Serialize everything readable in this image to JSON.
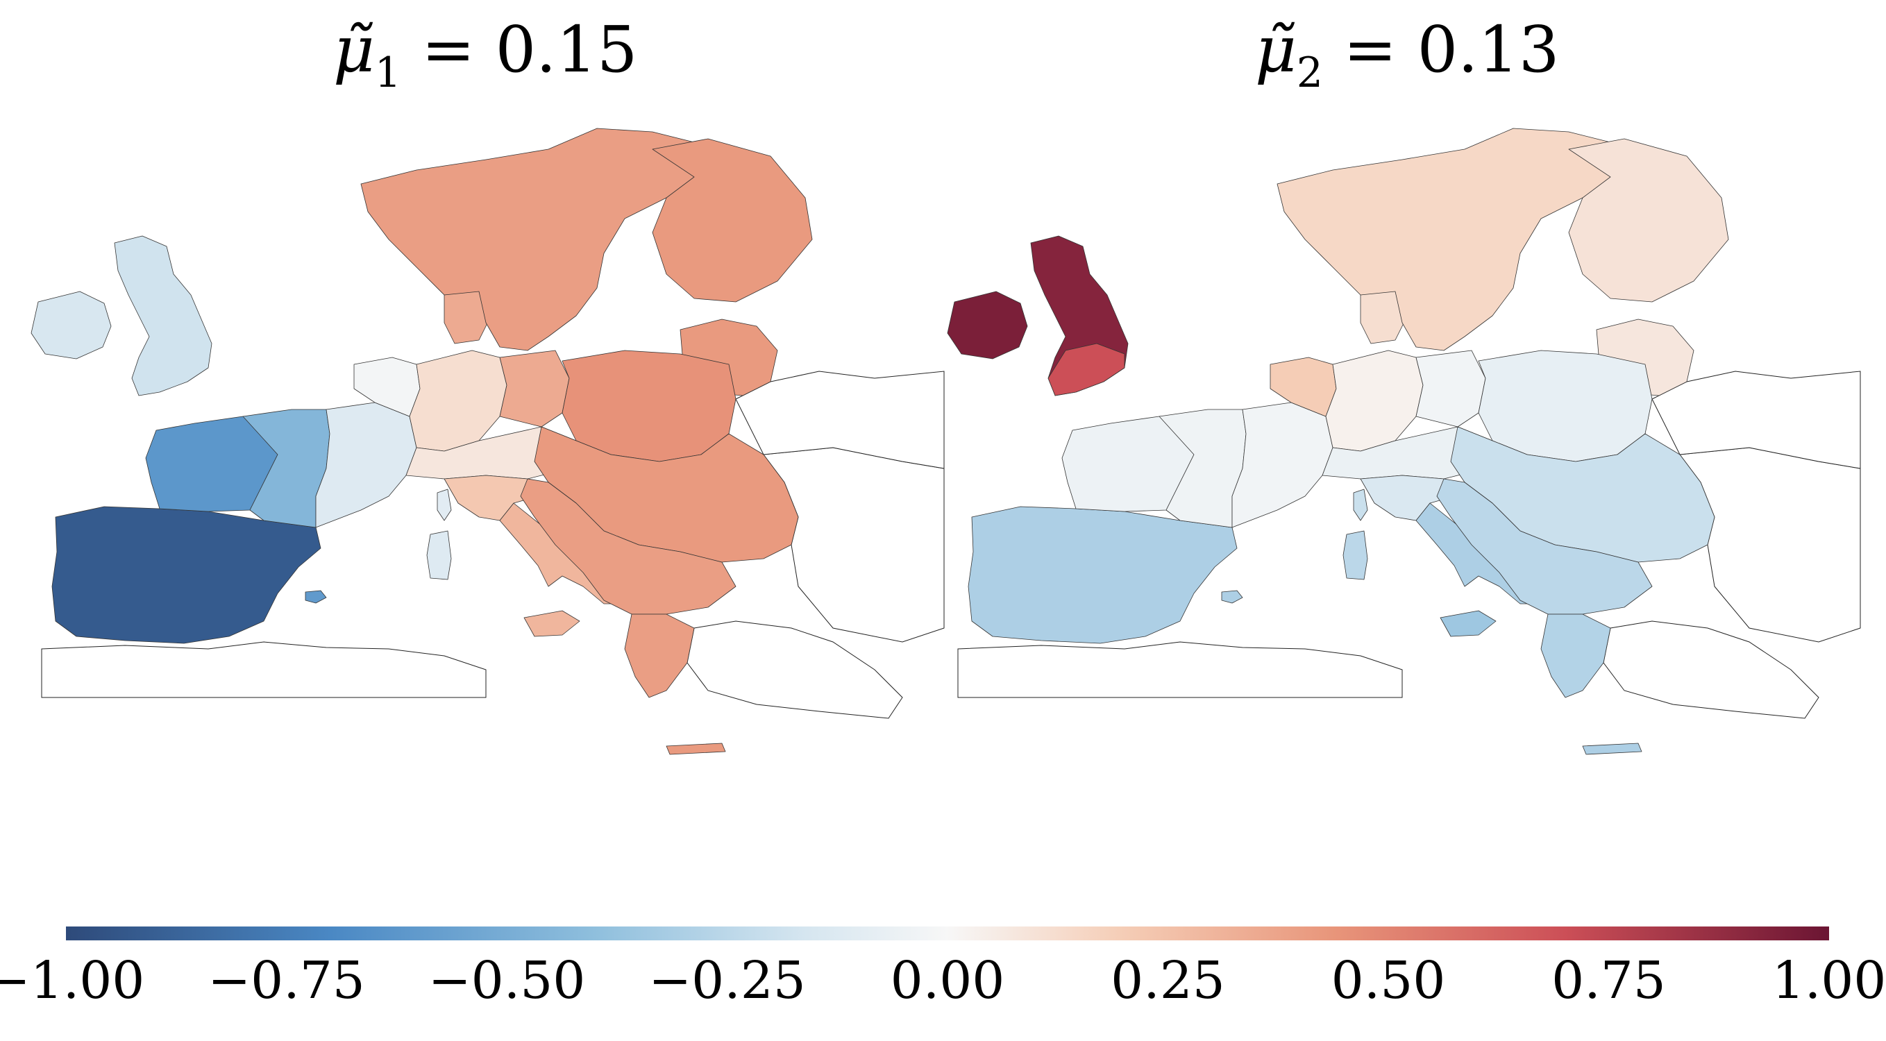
{
  "panels": [
    {
      "title_symbol": "μ̃",
      "title_subscript": "1",
      "title_value": "= 0.15",
      "regions": {
        "iberia": -0.92,
        "balearic": -0.6,
        "france_west": -0.62,
        "france_center": -0.45,
        "france_east": -0.12,
        "benelux": -0.02,
        "uk": -0.18,
        "ireland": -0.15,
        "germany_west": 0.12,
        "germany_east": 0.35,
        "alps": 0.08,
        "italy_north": 0.22,
        "italy_south": 0.3,
        "sardinia": -0.12,
        "corsica": -0.1,
        "sicily": 0.3,
        "denmark": 0.35,
        "scandinavia": 0.4,
        "finland": 0.42,
        "baltics": 0.42,
        "poland": 0.45,
        "central_east": 0.42,
        "balkans": 0.4,
        "greece": 0.4,
        "crete": 0.42
      }
    },
    {
      "title_symbol": "μ̃",
      "title_subscript": "2",
      "title_value": "= 0.13",
      "regions": {
        "iberia": -0.3,
        "balearic": -0.3,
        "france_west": -0.05,
        "france_center": -0.04,
        "france_east": -0.03,
        "benelux": 0.2,
        "uk": 0.92,
        "uk_south": 0.7,
        "ireland": 0.95,
        "germany_west": 0.03,
        "germany_east": -0.03,
        "alps": -0.06,
        "italy_north": -0.14,
        "italy_south": -0.3,
        "sardinia": -0.25,
        "corsica": -0.2,
        "sicily": -0.35,
        "denmark": 0.12,
        "scandinavia": 0.15,
        "finland": 0.1,
        "baltics": 0.08,
        "poland": -0.08,
        "central_east": -0.2,
        "balkans": -0.25,
        "greece": -0.28,
        "crete": -0.3
      }
    }
  ],
  "colorbar": {
    "min": -1.0,
    "max": 1.0,
    "ticks": [
      "−1.00",
      "−0.75",
      "−0.50",
      "−0.25",
      "0.00",
      "0.25",
      "0.50",
      "0.75",
      "1.00"
    ],
    "colors": {
      "neg_strong": "#3d5a8a",
      "neg_mid": "#4a88c4",
      "neg_light": "#c2dcec",
      "zero": "#f7f7f7",
      "pos_light": "#f7d2bf",
      "pos_mid": "#e8957a",
      "pos_strong": "#c8404d",
      "pos_max": "#7b1f3a"
    }
  }
}
